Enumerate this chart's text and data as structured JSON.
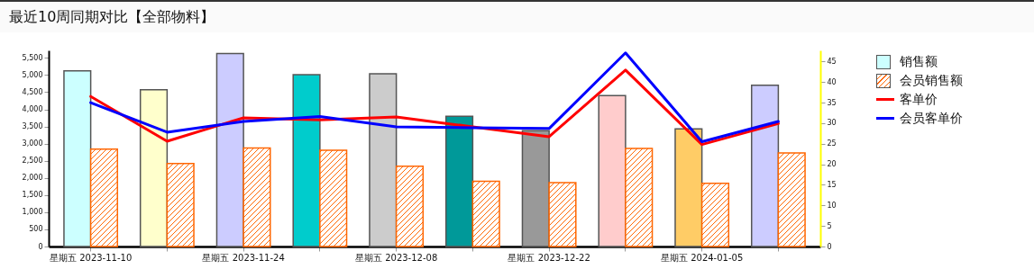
{
  "chart_data": {
    "type": "bar",
    "title": "最近10周同期对比【全部物料】",
    "categories": [
      "星期五 2023-11-10",
      null,
      "星期五 2023-11-24",
      null,
      "星期五 2023-12-08",
      null,
      "星期五 2023-12-22",
      null,
      "星期五 2024-01-05",
      null
    ],
    "series": [
      {
        "name": "销售额",
        "colors": [
          "#ccffff",
          "#ffffcc",
          "#ccccff",
          "#00cccc",
          "#cccccc",
          "#009999",
          "#999999",
          "#ffcccc",
          "#ffcc66",
          "#ccccff"
        ],
        "values": [
          5120,
          4570,
          5630,
          5010,
          5040,
          3800,
          3380,
          4400,
          3430,
          4700
        ]
      },
      {
        "name": "会员销售额",
        "color": "#ff6600",
        "values": [
          2840,
          2420,
          2870,
          2810,
          2340,
          1900,
          1860,
          2860,
          1840,
          2730
        ]
      },
      {
        "name": "客单价",
        "type": "line",
        "axis": "y2",
        "color": "#ff0000",
        "values": [
          36.5,
          25.6,
          31.3,
          30.8,
          31.5,
          29.1,
          26.7,
          42.9,
          24.8,
          29.9
        ]
      },
      {
        "name": "会员客单价",
        "type": "line",
        "axis": "y2",
        "color": "#0000ff",
        "values": [
          35.0,
          27.8,
          30.4,
          31.6,
          29.1,
          28.9,
          28.7,
          47.1,
          25.5,
          30.4
        ]
      }
    ],
    "ylim": [
      0,
      5720
    ],
    "yticks": [
      0,
      500,
      {
        "value": 1000,
        "label": "1,000"
      },
      {
        "value": 1500,
        "label": "1,500"
      },
      {
        "value": 2000,
        "label": "2,000"
      },
      {
        "value": 2500,
        "label": "2,500"
      },
      {
        "value": 3000,
        "label": "3,000"
      },
      {
        "value": 3500,
        "label": "3,500"
      },
      {
        "value": 4000,
        "label": "4,000"
      },
      {
        "value": 4500,
        "label": "4,500"
      },
      {
        "value": 5000,
        "label": "5,000"
      },
      {
        "value": 5500,
        "label": "5,500"
      }
    ],
    "y2lim": [
      0,
      47.7
    ],
    "y2ticks": [
      0,
      5,
      10,
      15,
      20,
      25,
      30,
      35,
      40,
      45
    ],
    "grid": false,
    "legend": "top right",
    "line_style": "solid",
    "marker": "none"
  }
}
